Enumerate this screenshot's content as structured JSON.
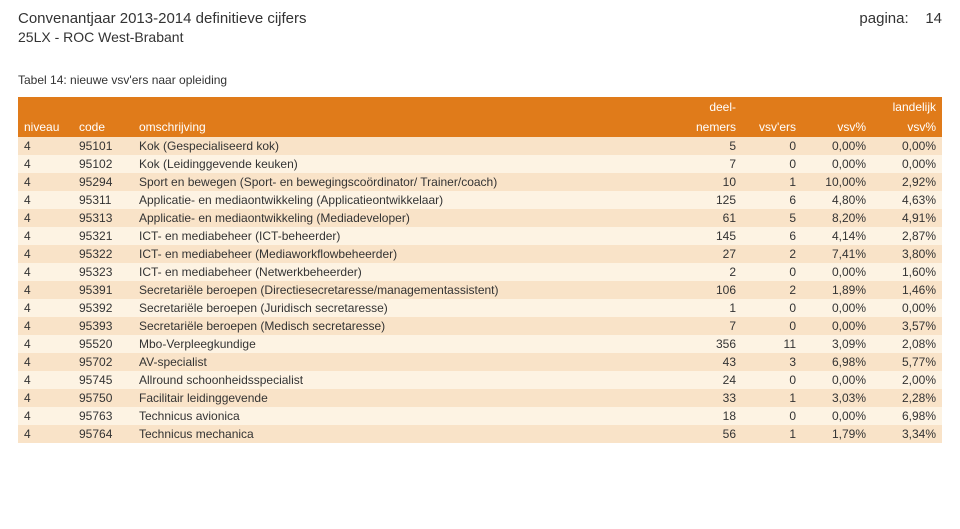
{
  "header": {
    "title_left": "Convenantjaar 2013-2014 definitieve cijfers",
    "page_label": "pagina:",
    "page_number": "14",
    "subtitle": "25LX - ROC West-Brabant",
    "table_caption": "Tabel 14: nieuwe vsv'ers naar opleiding"
  },
  "table": {
    "columns": {
      "niveau": "niveau",
      "code": "code",
      "desc": "omschrijving",
      "deel_top": "deel-",
      "deelnemers": "nemers",
      "vsvers": "vsv'ers",
      "vsvpct": "vsv%",
      "land_top": "landelijk",
      "land_vsvpct": "vsv%"
    },
    "rows": [
      {
        "niveau": "4",
        "code": "95101",
        "desc": "Kok (Gespecialiseerd kok)",
        "deelnemers": "5",
        "vsvers": "0",
        "vsvpct": "0,00%",
        "land": "0,00%"
      },
      {
        "niveau": "4",
        "code": "95102",
        "desc": "Kok (Leidinggevende keuken)",
        "deelnemers": "7",
        "vsvers": "0",
        "vsvpct": "0,00%",
        "land": "0,00%"
      },
      {
        "niveau": "4",
        "code": "95294",
        "desc": "Sport en bewegen (Sport- en bewegingscoördinator/ Trainer/coach)",
        "deelnemers": "10",
        "vsvers": "1",
        "vsvpct": "10,00%",
        "land": "2,92%"
      },
      {
        "niveau": "4",
        "code": "95311",
        "desc": "Applicatie- en mediaontwikkeling (Applicatieontwikkelaar)",
        "deelnemers": "125",
        "vsvers": "6",
        "vsvpct": "4,80%",
        "land": "4,63%"
      },
      {
        "niveau": "4",
        "code": "95313",
        "desc": "Applicatie- en mediaontwikkeling (Mediadeveloper)",
        "deelnemers": "61",
        "vsvers": "5",
        "vsvpct": "8,20%",
        "land": "4,91%"
      },
      {
        "niveau": "4",
        "code": "95321",
        "desc": "ICT- en mediabeheer (ICT-beheerder)",
        "deelnemers": "145",
        "vsvers": "6",
        "vsvpct": "4,14%",
        "land": "2,87%"
      },
      {
        "niveau": "4",
        "code": "95322",
        "desc": "ICT- en mediabeheer (Mediaworkflowbeheerder)",
        "deelnemers": "27",
        "vsvers": "2",
        "vsvpct": "7,41%",
        "land": "3,80%"
      },
      {
        "niveau": "4",
        "code": "95323",
        "desc": "ICT- en mediabeheer (Netwerkbeheerder)",
        "deelnemers": "2",
        "vsvers": "0",
        "vsvpct": "0,00%",
        "land": "1,60%"
      },
      {
        "niveau": "4",
        "code": "95391",
        "desc": "Secretariële beroepen (Directiesecretaresse/managementassistent)",
        "deelnemers": "106",
        "vsvers": "2",
        "vsvpct": "1,89%",
        "land": "1,46%"
      },
      {
        "niveau": "4",
        "code": "95392",
        "desc": "Secretariële beroepen (Juridisch secretaresse)",
        "deelnemers": "1",
        "vsvers": "0",
        "vsvpct": "0,00%",
        "land": "0,00%"
      },
      {
        "niveau": "4",
        "code": "95393",
        "desc": "Secretariële beroepen (Medisch secretaresse)",
        "deelnemers": "7",
        "vsvers": "0",
        "vsvpct": "0,00%",
        "land": "3,57%"
      },
      {
        "niveau": "4",
        "code": "95520",
        "desc": "Mbo-Verpleegkundige",
        "deelnemers": "356",
        "vsvers": "11",
        "vsvpct": "3,09%",
        "land": "2,08%"
      },
      {
        "niveau": "4",
        "code": "95702",
        "desc": "AV-specialist",
        "deelnemers": "43",
        "vsvers": "3",
        "vsvpct": "6,98%",
        "land": "5,77%"
      },
      {
        "niveau": "4",
        "code": "95745",
        "desc": "Allround schoonheidsspecialist",
        "deelnemers": "24",
        "vsvers": "0",
        "vsvpct": "0,00%",
        "land": "2,00%"
      },
      {
        "niveau": "4",
        "code": "95750",
        "desc": "Facilitair leidinggevende",
        "deelnemers": "33",
        "vsvers": "1",
        "vsvpct": "3,03%",
        "land": "2,28%"
      },
      {
        "niveau": "4",
        "code": "95763",
        "desc": "Technicus avionica",
        "deelnemers": "18",
        "vsvers": "0",
        "vsvpct": "0,00%",
        "land": "6,98%"
      },
      {
        "niveau": "4",
        "code": "95764",
        "desc": "Technicus mechanica",
        "deelnemers": "56",
        "vsvers": "1",
        "vsvpct": "1,79%",
        "land": "3,34%"
      }
    ]
  },
  "style": {
    "header_bg": "#e07b1a",
    "row_odd_bg": "#f9e3c8",
    "row_even_bg": "#fdf3e3",
    "title_fontsize": 15,
    "body_fontsize": 12
  }
}
